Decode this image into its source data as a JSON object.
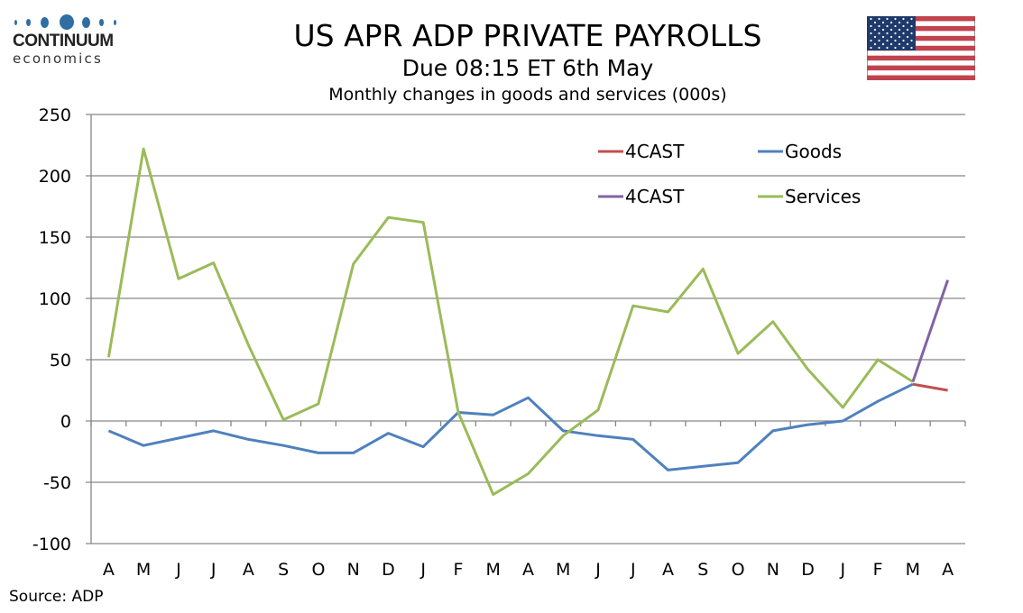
{
  "branding": {
    "logo_word": "CONTINUUM",
    "logo_sub": "economics",
    "logo_color": "#2f6ea3"
  },
  "header": {
    "title": "US APR ADP PRIVATE PAYROLLS",
    "subtitle": "Due 08:15 ET 6th May",
    "description": "Monthly changes in goods and services (000s)"
  },
  "flag": {
    "country": "US",
    "icon": "us-flag-icon"
  },
  "footer": {
    "source": "Source: ADP"
  },
  "chart_data": {
    "type": "line",
    "title": "US APR ADP PRIVATE PAYROLLS",
    "subtitle": "Monthly changes in goods and services (000s)",
    "xlabel": "",
    "ylabel": "",
    "categories": [
      "A",
      "M",
      "J",
      "J",
      "A",
      "S",
      "O",
      "N",
      "D",
      "J",
      "F",
      "M",
      "A",
      "M",
      "J",
      "J",
      "A",
      "S",
      "O",
      "N",
      "D",
      "J",
      "F",
      "M",
      "A"
    ],
    "ylim": [
      -100,
      250
    ],
    "yticks": [
      250,
      200,
      150,
      100,
      50,
      0,
      -50,
      -100
    ],
    "grid": true,
    "legend_position": "top-right",
    "series": [
      {
        "name": "4CAST",
        "color": "#c0504d",
        "values": [
          null,
          null,
          null,
          null,
          null,
          null,
          null,
          null,
          null,
          null,
          null,
          null,
          null,
          null,
          null,
          null,
          null,
          null,
          null,
          null,
          null,
          null,
          null,
          30,
          25
        ]
      },
      {
        "name": "Goods",
        "color": "#4f81bd",
        "values": [
          -8,
          -20,
          -14,
          -8,
          -15,
          -20,
          -26,
          -26,
          -10,
          -21,
          7,
          5,
          19,
          -8,
          -12,
          -15,
          -40,
          -37,
          -34,
          -8,
          -3,
          0,
          16,
          30,
          null
        ]
      },
      {
        "name": "4CAST",
        "color": "#8064a2",
        "values": [
          null,
          null,
          null,
          null,
          null,
          null,
          null,
          null,
          null,
          null,
          null,
          null,
          null,
          null,
          null,
          null,
          null,
          null,
          null,
          null,
          null,
          null,
          null,
          32,
          115
        ]
      },
      {
        "name": "Services",
        "color": "#9bbb59",
        "values": [
          52,
          222,
          116,
          129,
          62,
          1,
          14,
          128,
          166,
          162,
          7,
          -60,
          -43,
          -12,
          9,
          94,
          89,
          124,
          55,
          81,
          42,
          11,
          50,
          32,
          null
        ]
      }
    ]
  }
}
